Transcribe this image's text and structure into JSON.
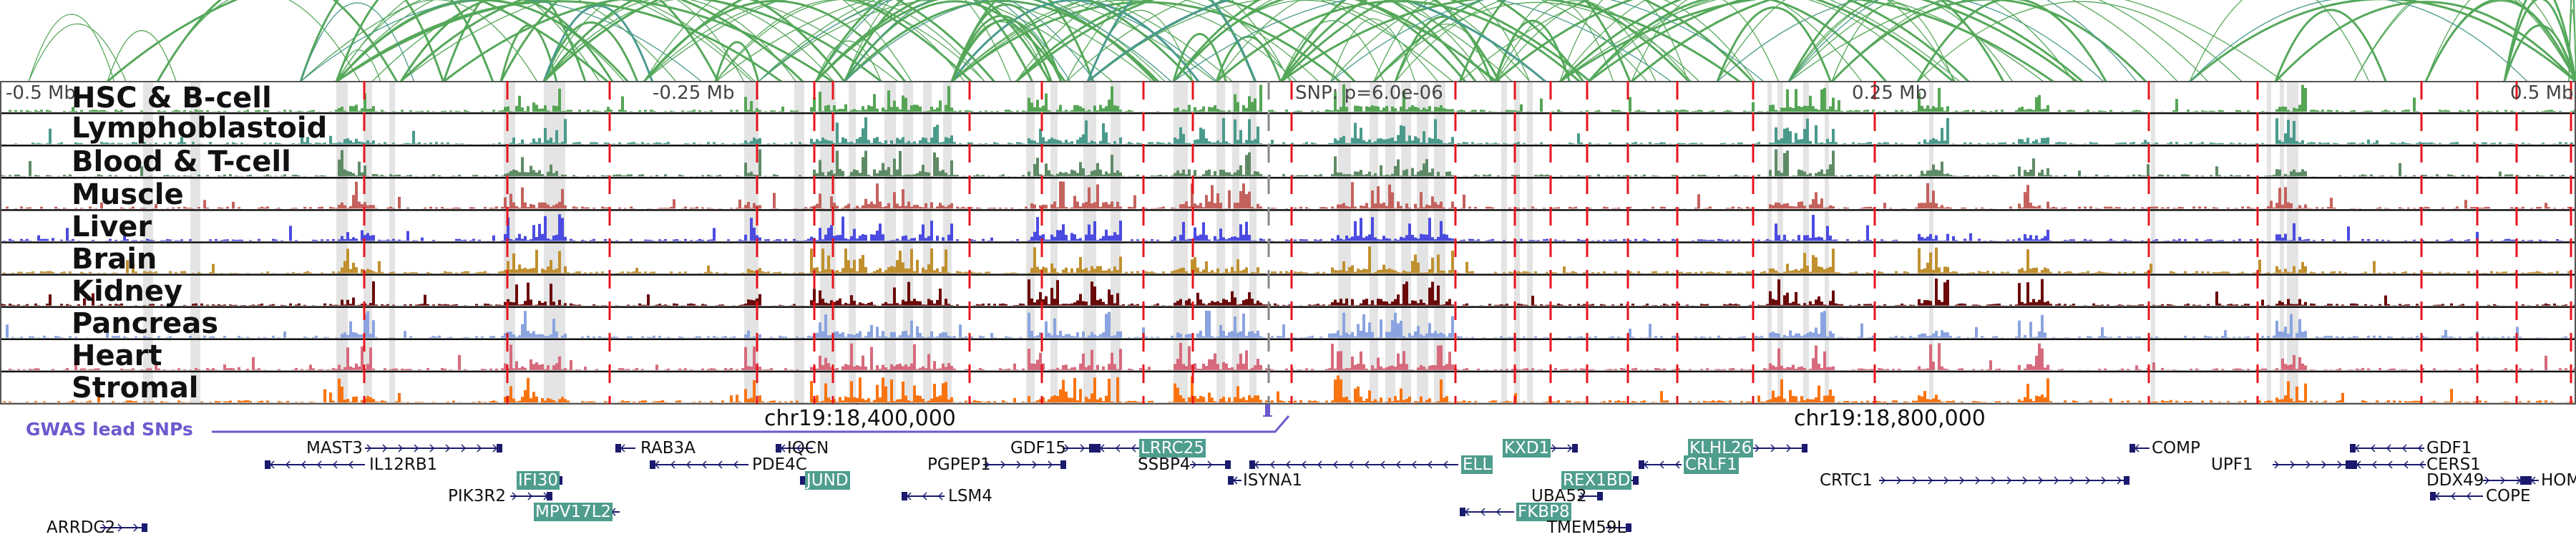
{
  "view": {
    "axis_labels": [
      "-0.5 Mb",
      "-0.25 Mb",
      "SNP: p=6.0e-06",
      "0.25 Mb",
      "0.5 Mb"
    ],
    "coordinate_labels": [
      "chr19:18,400,000",
      "chr19:18,800,000"
    ],
    "gwas_label": "GWAS lead SNPs",
    "colors": {
      "snp_line": "#e8141c",
      "highlight": "#e4e4e4",
      "gwas": "#6a5acd",
      "gene_line": "#1a1a6e",
      "gene_highlight": "#4f9d8e",
      "arc_green": "#55a85a",
      "arc_teal": "#4a9a8e"
    }
  },
  "tracks": [
    {
      "name": "HSC & B-cell",
      "color": "#55a555"
    },
    {
      "name": "Lymphoblastoid",
      "color": "#4a9a8c"
    },
    {
      "name": "Blood & T-cell",
      "color": "#5e8b66"
    },
    {
      "name": "Muscle",
      "color": "#c4625d"
    },
    {
      "name": "Liver",
      "color": "#4b4be0"
    },
    {
      "name": "Brain",
      "color": "#c0902e"
    },
    {
      "name": "Kidney",
      "color": "#6b0a0a"
    },
    {
      "name": "Pancreas",
      "color": "#8aa4e0"
    },
    {
      "name": "Heart",
      "color": "#d66a7c"
    },
    {
      "name": "Stromal",
      "color": "#f97410"
    }
  ],
  "genes": [
    {
      "name": "MAST3",
      "strand": "+",
      "highlight": false
    },
    {
      "name": "IL12RB1",
      "strand": "-",
      "highlight": false
    },
    {
      "name": "IFI30",
      "strand": "+",
      "highlight": true
    },
    {
      "name": "PIK3R2",
      "strand": "+",
      "highlight": false
    },
    {
      "name": "MPV17L2",
      "strand": "-",
      "highlight": true
    },
    {
      "name": "ARRDC2",
      "strand": "+",
      "highlight": false
    },
    {
      "name": "RAB3A",
      "strand": "-",
      "highlight": false
    },
    {
      "name": "PDE4C",
      "strand": "-",
      "highlight": false
    },
    {
      "name": "IQCN",
      "strand": "-",
      "highlight": false
    },
    {
      "name": "JUND",
      "strand": "-",
      "highlight": true
    },
    {
      "name": "LSM4",
      "strand": "-",
      "highlight": false
    },
    {
      "name": "PGPEP1",
      "strand": "+",
      "highlight": false
    },
    {
      "name": "GDF15",
      "strand": "+",
      "highlight": false
    },
    {
      "name": "LRRC25",
      "strand": "-",
      "highlight": true
    },
    {
      "name": "SSBP4",
      "strand": "+",
      "highlight": false
    },
    {
      "name": "ISYNA1",
      "strand": "-",
      "highlight": false
    },
    {
      "name": "ELL",
      "strand": "-",
      "highlight": true
    },
    {
      "name": "KXD1",
      "strand": "+",
      "highlight": true
    },
    {
      "name": "REX1BD",
      "strand": "+",
      "highlight": true
    },
    {
      "name": "UBA52",
      "strand": "+",
      "highlight": false
    },
    {
      "name": "FKBP8",
      "strand": "-",
      "highlight": true
    },
    {
      "name": "TMEM59L",
      "strand": "+",
      "highlight": false
    },
    {
      "name": "KLHL26",
      "strand": "+",
      "highlight": true
    },
    {
      "name": "CRLF1",
      "strand": "-",
      "highlight": true
    },
    {
      "name": "CRTC1",
      "strand": "+",
      "highlight": false
    },
    {
      "name": "COMP",
      "strand": "-",
      "highlight": false
    },
    {
      "name": "UPF1",
      "strand": "+",
      "highlight": false
    },
    {
      "name": "GDF1",
      "strand": "-",
      "highlight": false
    },
    {
      "name": "CERS1",
      "strand": "-",
      "highlight": false
    },
    {
      "name": "DDX49",
      "strand": "+",
      "highlight": false
    },
    {
      "name": "HOM",
      "strand": "-",
      "highlight": false
    },
    {
      "name": "COPE",
      "strand": "-",
      "highlight": false
    }
  ]
}
